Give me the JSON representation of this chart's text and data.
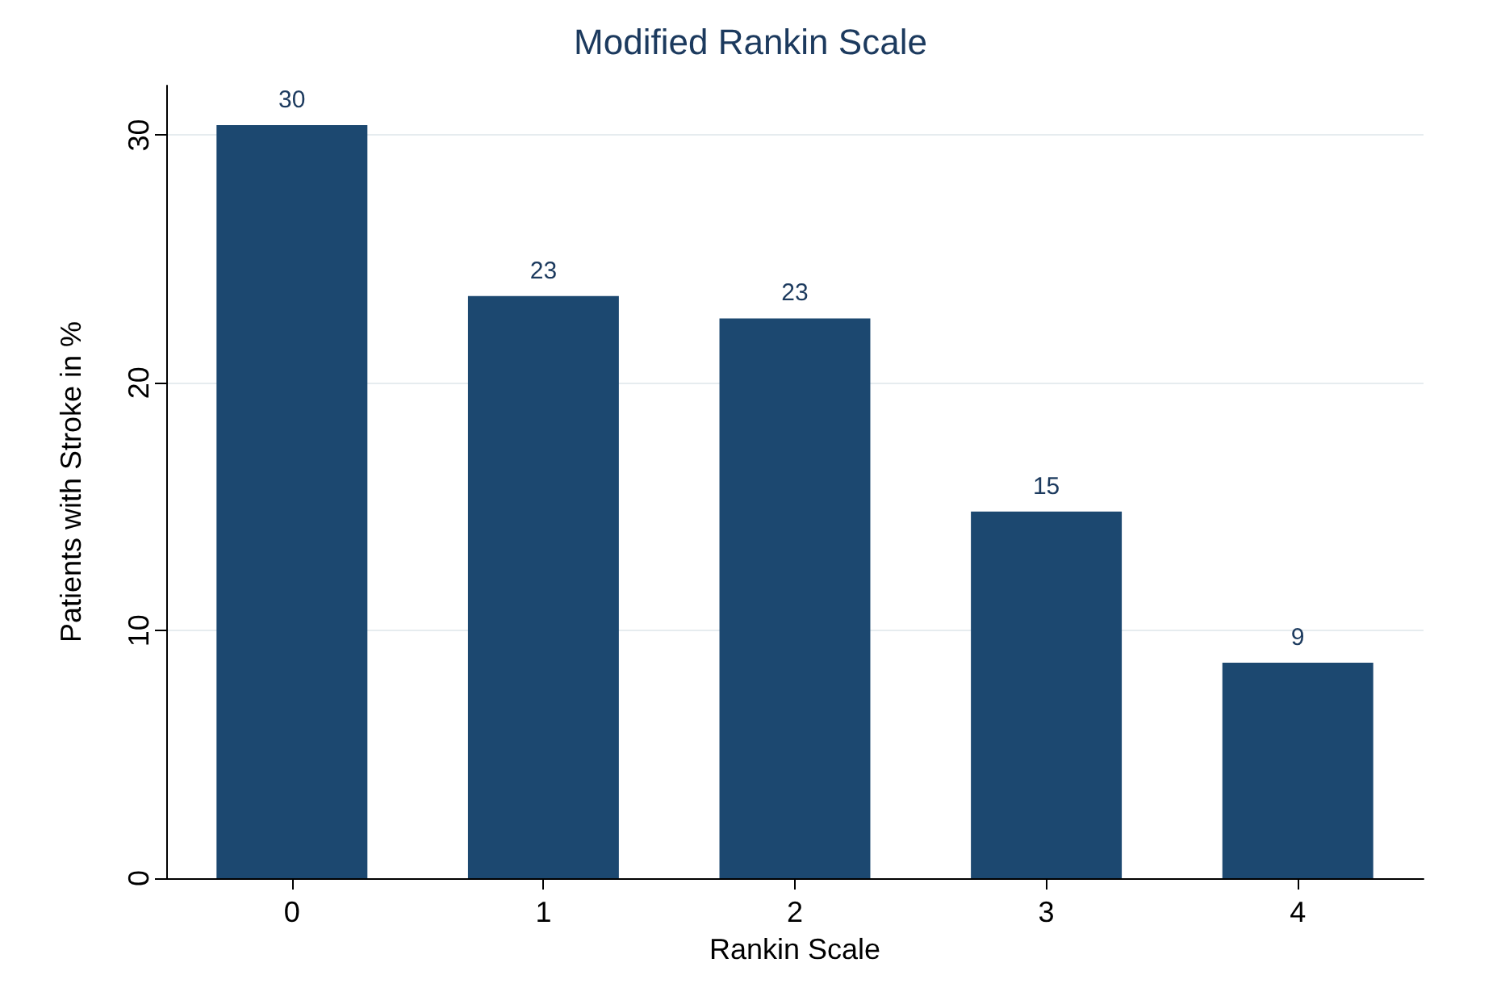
{
  "chart_data": {
    "type": "bar",
    "title": "Modified Rankin Scale",
    "xlabel": "Rankin Scale",
    "ylabel": "Patients with Stroke in %",
    "categories": [
      "0",
      "1",
      "2",
      "3",
      "4"
    ],
    "values": [
      30.4,
      23.5,
      22.6,
      14.8,
      8.7
    ],
    "value_labels": [
      "30",
      "23",
      "23",
      "15",
      "9"
    ],
    "color": "#1c4870",
    "ylim": [
      0,
      32
    ],
    "yticks": [
      0,
      10,
      20,
      30
    ],
    "grid": "y"
  }
}
